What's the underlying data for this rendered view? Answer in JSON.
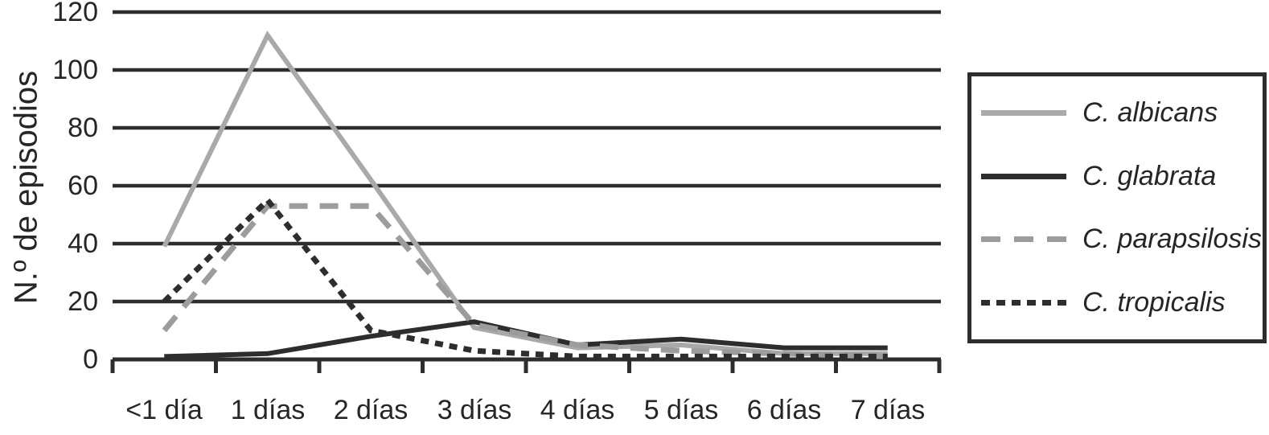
{
  "chart_data": {
    "type": "line",
    "title": "",
    "xlabel": "",
    "ylabel": "N.º de episodios",
    "categories": [
      "<1 día",
      "1 días",
      "2 días",
      "3 días",
      "4 días",
      "5 días",
      "6 días",
      "7 días"
    ],
    "yticks": [
      "120",
      "100",
      "80",
      "60",
      "40",
      "20",
      "0"
    ],
    "ylim": [
      0,
      120
    ],
    "grid": "horizontal-only",
    "legend_position": "right-outside-box",
    "axis_color": "#2d2d2d",
    "background_color": "#ffffff",
    "series": [
      {
        "name": "C. albicans",
        "style": "solid",
        "color": "#a9a9a9",
        "values": [
          39,
          112,
          62,
          11,
          4,
          5,
          2,
          2
        ]
      },
      {
        "name": "C. glabrata",
        "style": "solid",
        "color": "#2d2d2d",
        "values": [
          1,
          2,
          8,
          13,
          5,
          7,
          4,
          4
        ]
      },
      {
        "name": "C. parapsilosis",
        "style": "dashed",
        "color": "#9c9c9c",
        "values": [
          10,
          53,
          53,
          12,
          5,
          3,
          2,
          1
        ]
      },
      {
        "name": "C. tropicalis",
        "style": "dotted",
        "color": "#2d2d2d",
        "values": [
          20,
          55,
          10,
          3,
          1,
          1,
          1,
          1
        ]
      }
    ]
  }
}
